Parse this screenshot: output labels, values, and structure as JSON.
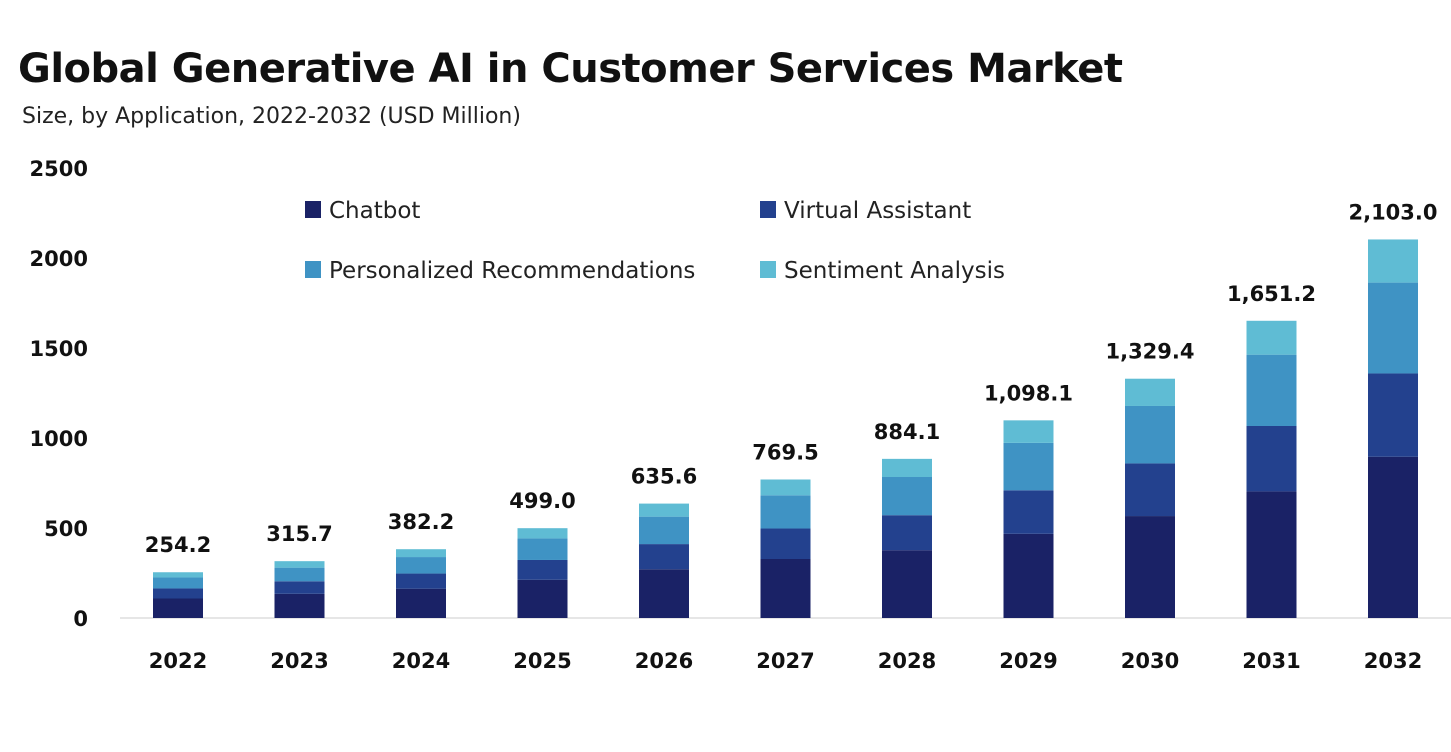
{
  "chart_data": {
    "type": "bar",
    "stacked": true,
    "title": "Global Generative AI in Customer Services Market",
    "subtitle": "Size, by Application, 2022-2032 (USD Million)",
    "xlabel": "",
    "ylabel": "",
    "ylim": [
      0,
      2500
    ],
    "yticks": [
      "0",
      "500",
      "1000",
      "1500",
      "2000",
      "2500"
    ],
    "grid": false,
    "legend_position": "top",
    "categories": [
      "2022",
      "2023",
      "2024",
      "2025",
      "2026",
      "2027",
      "2028",
      "2029",
      "2030",
      "2031",
      "2032"
    ],
    "totals": [
      254.2,
      315.7,
      382.2,
      499.0,
      635.6,
      769.5,
      884.1,
      1098.1,
      1329.4,
      1651.2,
      2103.0
    ],
    "total_labels": [
      "254.2",
      "315.7",
      "382.2",
      "499.0",
      "635.6",
      "769.5",
      "884.1",
      "1,098.1",
      "1,329.4",
      "1,651.2",
      "2,103.0"
    ],
    "series": [
      {
        "name": "Chatbot",
        "color": "#1a2266",
        "values": [
          108.3,
          134.5,
          162.8,
          212.6,
          270.8,
          327.8,
          376.6,
          467.8,
          566.3,
          703.4,
          895.9
        ]
      },
      {
        "name": "Virtual Assistant",
        "color": "#23418e",
        "values": [
          55.9,
          69.5,
          84.1,
          109.8,
          139.8,
          169.3,
          194.5,
          241.6,
          292.5,
          363.3,
          462.7
        ]
      },
      {
        "name": "Personalized Recommendations",
        "color": "#3f93c4",
        "values": [
          61.0,
          75.8,
          91.7,
          119.8,
          152.5,
          184.7,
          212.2,
          263.5,
          319.1,
          396.3,
          504.7
        ]
      },
      {
        "name": "Sentiment Analysis",
        "color": "#5fbcd4",
        "values": [
          29.0,
          35.9,
          43.6,
          56.8,
          72.5,
          87.7,
          100.8,
          125.2,
          151.5,
          188.2,
          239.7
        ]
      }
    ]
  }
}
